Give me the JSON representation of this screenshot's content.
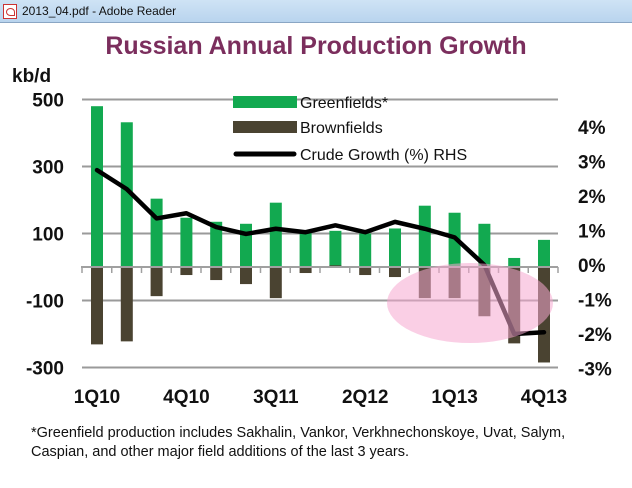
{
  "window": {
    "title": "2013_04.pdf - Adobe Reader",
    "icon": "pdf-icon"
  },
  "chart_data": {
    "type": "bar+line",
    "title": "Russian Annual Production Growth",
    "ylabel": "kb/d",
    "ylim": [
      -300,
      500
    ],
    "y_ticks": [
      500,
      300,
      100,
      -100,
      -300
    ],
    "y2lim": [
      -3,
      4
    ],
    "y2_ticks": [
      "4%",
      "3%",
      "2%",
      "1%",
      "0%",
      "-1%",
      "-2%",
      "-3%"
    ],
    "x_tick_labels": [
      "1Q10",
      "4Q10",
      "3Q11",
      "2Q12",
      "1Q13",
      "4Q13"
    ],
    "grid": true,
    "legend_position": "top-center",
    "series": [
      {
        "name": "Greenfields*",
        "type": "bar",
        "axis": "left",
        "color": "#12a950",
        "values": [
          480,
          432,
          204,
          147,
          135,
          129,
          192,
          102,
          108,
          100,
          115,
          183,
          162,
          129,
          27,
          81
        ]
      },
      {
        "name": "Brownfields",
        "type": "bar",
        "axis": "left",
        "color": "#4a4331",
        "values": [
          -231,
          -222,
          -87,
          -24,
          -39,
          -51,
          -93,
          -18,
          5,
          -24,
          -30,
          -93,
          -93,
          -147,
          -228,
          -285
        ]
      },
      {
        "name": "Crude Growth (%) RHS",
        "type": "line",
        "axis": "right",
        "color": "#000000",
        "values": [
          2.75,
          2.2,
          1.35,
          1.5,
          1.1,
          0.9,
          1.05,
          0.95,
          1.15,
          0.95,
          1.25,
          1.05,
          0.8,
          0.0,
          -2.0,
          -1.95
        ]
      }
    ],
    "annotation": {
      "shape": "ellipse",
      "color": "#f5a8d0",
      "highlight": "2013 quarters"
    }
  },
  "footnote": "*Greenfield production includes Sakhalin, Vankor, Verkhnechonskoye, Uvat, Salym, Caspian, and other major field additions of the last 3 years."
}
